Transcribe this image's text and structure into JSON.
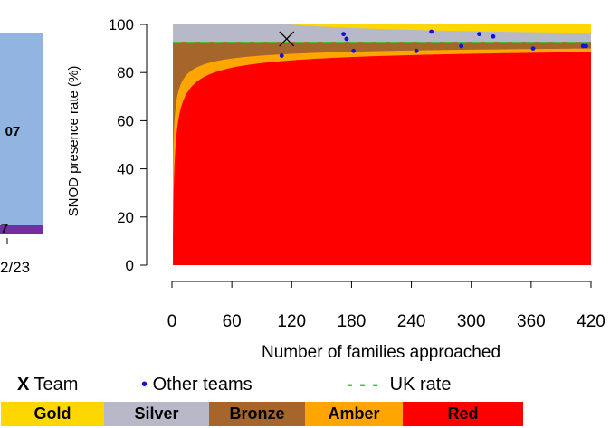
{
  "chart_data": {
    "type": "area",
    "ylabel": "SNOD presence rate (%)",
    "xlabel": "Number of families approached",
    "xlim": [
      0,
      420
    ],
    "ylim": [
      0,
      100
    ],
    "xticks": [
      "0",
      "60",
      "120",
      "180",
      "240",
      "300",
      "360",
      "420"
    ],
    "yticks": [
      "0",
      "20",
      "40",
      "60",
      "80",
      "100"
    ],
    "uk_rate": 92.5,
    "team": {
      "x": 115,
      "y": 94
    },
    "other_teams": [
      {
        "x": 110,
        "y": 87
      },
      {
        "x": 172,
        "y": 96
      },
      {
        "x": 175,
        "y": 94
      },
      {
        "x": 182,
        "y": 89
      },
      {
        "x": 245,
        "y": 89
      },
      {
        "x": 260,
        "y": 97
      },
      {
        "x": 290,
        "y": 91
      },
      {
        "x": 308,
        "y": 96
      },
      {
        "x": 322,
        "y": 95
      },
      {
        "x": 362,
        "y": 90
      },
      {
        "x": 412,
        "y": 91
      },
      {
        "x": 415,
        "y": 91
      }
    ],
    "legend": {
      "team_marker": "X",
      "team_label": "Team",
      "other_marker": "•",
      "other_label": "Other teams",
      "uk_marker": "- - -",
      "uk_label": "UK rate"
    },
    "bands": [
      "Gold",
      "Silver",
      "Bronze",
      "Amber",
      "Red"
    ],
    "colors": {
      "gold": "#FFD700",
      "silver": "#B7B8C8",
      "bronze": "#A5652B",
      "amber": "#FFA500",
      "red": "#FF0000",
      "ukline": "#33CC33",
      "points": "#1010E0"
    }
  },
  "left_panel": {
    "bar_label_upper": "07",
    "bar_label_lower": "7",
    "axis_label": "2/23",
    "colors": {
      "bar": "#92B4E0",
      "stripe": "#7030A0"
    }
  }
}
